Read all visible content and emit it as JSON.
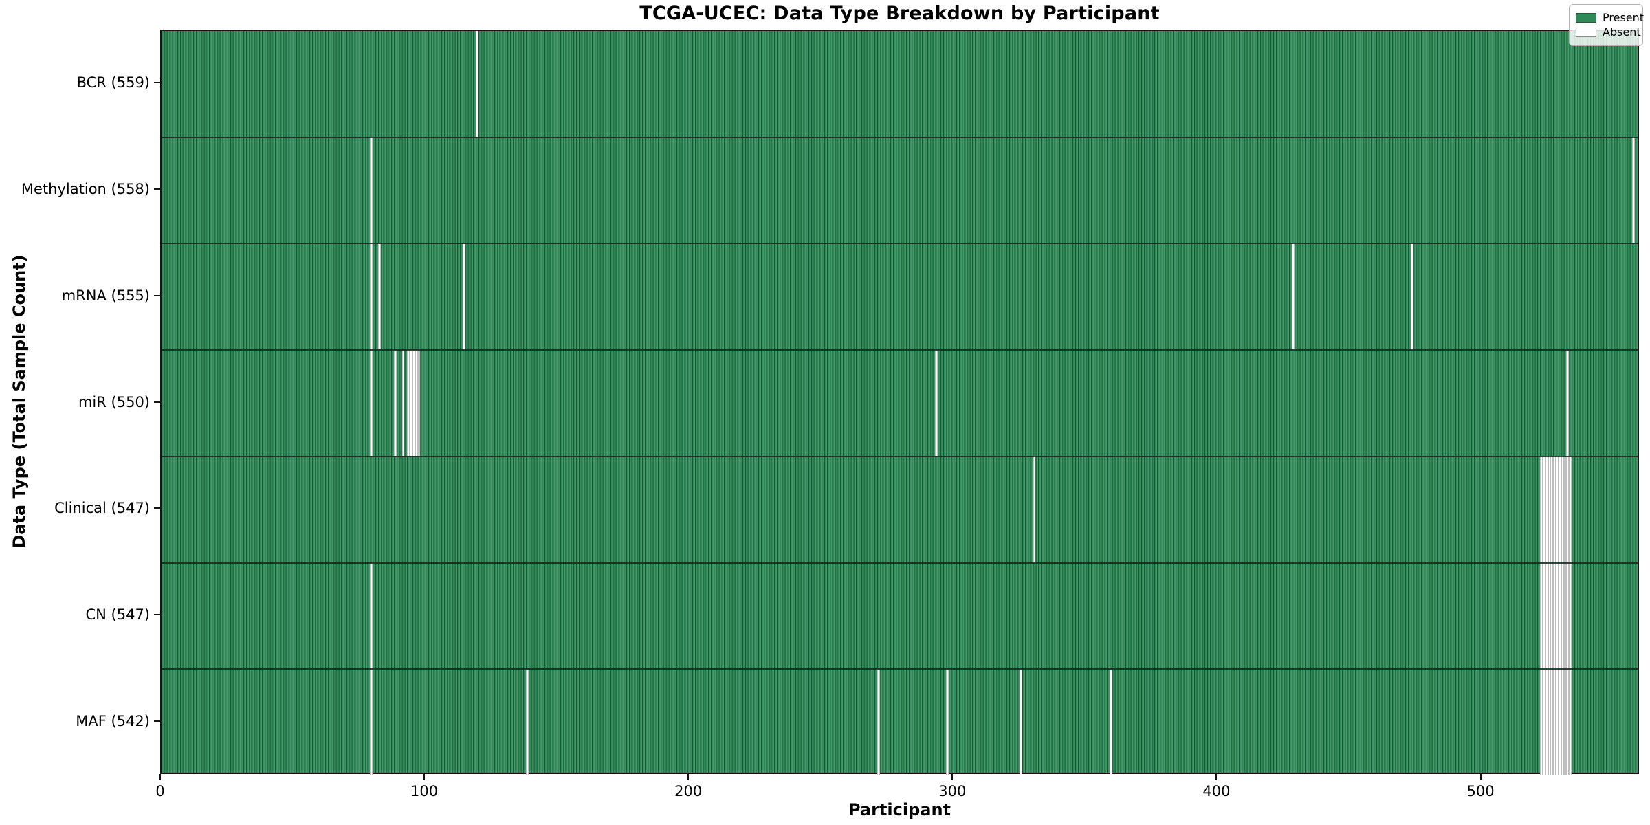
{
  "title": "TCGA-UCEC: Data Type Breakdown by Participant",
  "axes": {
    "xlabel": "Participant",
    "ylabel": "Data Type (Total Sample Count)"
  },
  "legend": {
    "present_label": "Present",
    "absent_label": "Absent"
  },
  "colors": {
    "present": "#2e8b57",
    "present_light": "#44996b",
    "bar_edge": "#1b5636",
    "absent": "#ffffff",
    "axis": "#141414"
  },
  "chart_data": {
    "type": "heatmap",
    "title": "TCGA-UCEC: Data Type Breakdown by Participant",
    "xlabel": "Participant",
    "ylabel": "Data Type (Total Sample Count)",
    "xlim": [
      0,
      560
    ],
    "x_ticks": [
      0,
      100,
      200,
      300,
      400,
      500
    ],
    "grid": false,
    "legend_entries": [
      "Present",
      "Absent"
    ],
    "legend_position": "upper right",
    "total_participants": 560,
    "rows": [
      {
        "name": "BCR",
        "label": "BCR (559)",
        "present_count": 559,
        "absent_participants": [
          119
        ]
      },
      {
        "name": "Methylation",
        "label": "Methylation (558)",
        "present_count": 558,
        "absent_participants": [
          79,
          557
        ]
      },
      {
        "name": "mRNA",
        "label": "mRNA (555)",
        "present_count": 555,
        "absent_participants": [
          79,
          82,
          114,
          428,
          473
        ]
      },
      {
        "name": "miR",
        "label": "miR (550)",
        "present_count": 550,
        "absent_participants": [
          79,
          88,
          91,
          93,
          94,
          95,
          96,
          97,
          293,
          532
        ]
      },
      {
        "name": "Clinical",
        "label": "Clinical (547)",
        "present_count": 547,
        "absent_participants": [
          330,
          522,
          523,
          524,
          525,
          526,
          527,
          528,
          529,
          530,
          531,
          532,
          533
        ]
      },
      {
        "name": "CN",
        "label": "CN (547)",
        "present_count": 547,
        "absent_participants": [
          79,
          522,
          523,
          524,
          525,
          526,
          527,
          528,
          529,
          530,
          531,
          532,
          533
        ]
      },
      {
        "name": "MAF",
        "label": "MAF (542)",
        "present_count": 542,
        "absent_participants": [
          79,
          138,
          271,
          297,
          325,
          359,
          522,
          523,
          524,
          525,
          526,
          527,
          528,
          529,
          530,
          531,
          532,
          533
        ]
      }
    ]
  }
}
